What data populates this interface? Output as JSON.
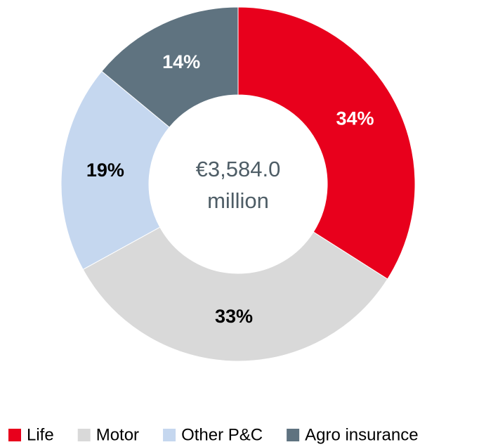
{
  "chart_data": {
    "type": "donut",
    "categories": [
      "Life",
      "Motor",
      "Other P&C",
      "Agro insurance"
    ],
    "values": [
      34,
      33,
      19,
      14
    ],
    "value_labels": [
      "34%",
      "33%",
      "19%",
      "14%"
    ],
    "colors": [
      "#e8001c",
      "#d9d9d9",
      "#c5d7ef",
      "#5f7380"
    ],
    "label_colors": [
      "#ffffff",
      "#000000",
      "#000000",
      "#ffffff"
    ],
    "center_text": [
      "€3,584.0",
      "million"
    ],
    "legend": "bottom"
  }
}
